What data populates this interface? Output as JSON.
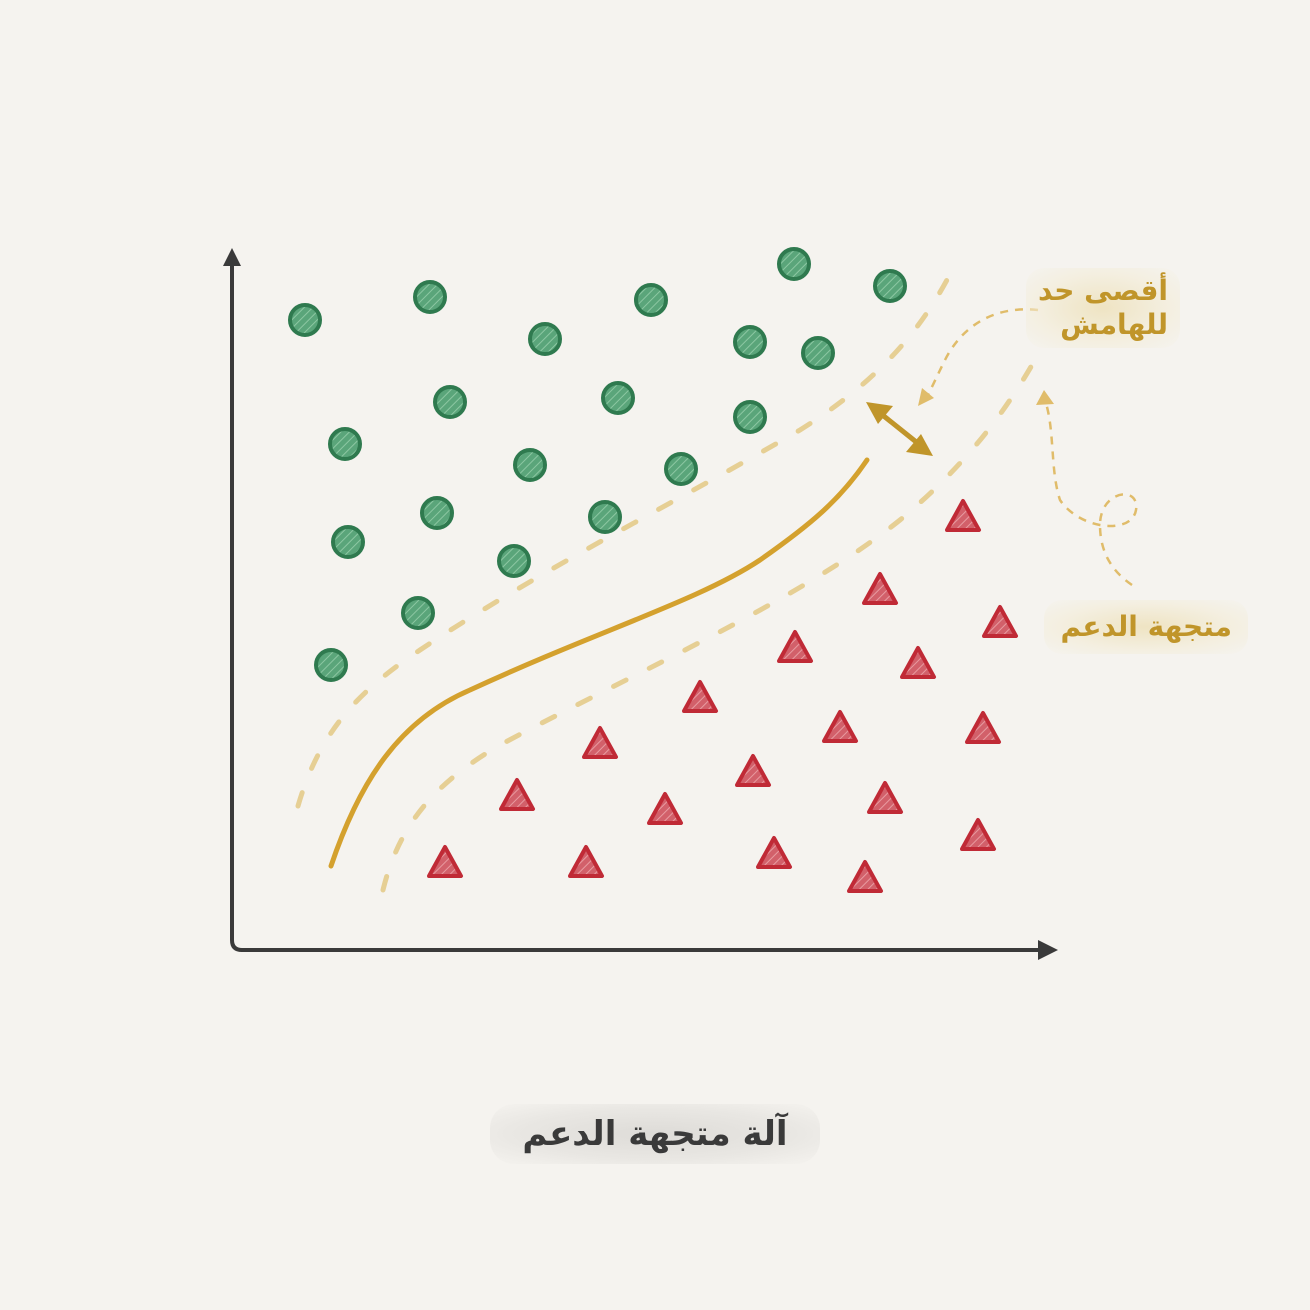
{
  "title": "آلة متجهة الدعم",
  "annotations": {
    "max_margin": "أقصى حد\nللهامش",
    "support_vectors": "متجهة الدعم"
  },
  "colors": {
    "background": "#f5f3ef",
    "axis": "#3a3a3a",
    "boundary": "#d4a12e",
    "margin": "#e6cf94",
    "accent": "#c0952a",
    "class_a_fill": "#5aa57a",
    "class_a_stroke": "#2f7a4f",
    "class_b_fill": "#d2606a",
    "class_b_stroke": "#c02a36"
  },
  "icons": [
    "circle-marker",
    "triangle-marker",
    "double-arrow-icon",
    "dashed-arrow-icon"
  ],
  "chart_data": {
    "type": "scatter",
    "series": [
      {
        "points": [
          [
            305,
            320
          ],
          [
            430,
            297
          ],
          [
            545,
            339
          ],
          [
            651,
            300
          ],
          [
            794,
            264
          ],
          [
            890,
            286
          ],
          [
            750,
            342
          ],
          [
            818,
            353
          ],
          [
            450,
            402
          ],
          [
            618,
            398
          ],
          [
            750,
            417
          ],
          [
            345,
            444
          ],
          [
            530,
            465
          ],
          [
            681,
            469
          ],
          [
            437,
            513
          ],
          [
            605,
            517
          ],
          [
            348,
            542
          ],
          [
            514,
            561
          ],
          [
            418,
            613
          ],
          [
            331,
            665
          ]
        ]
      },
      {
        "points": [
          [
            963,
            517
          ],
          [
            880,
            590
          ],
          [
            1000,
            623
          ],
          [
            795,
            648
          ],
          [
            918,
            664
          ],
          [
            700,
            698
          ],
          [
            840,
            728
          ],
          [
            983,
            729
          ],
          [
            600,
            744
          ],
          [
            753,
            772
          ],
          [
            517,
            796
          ],
          [
            665,
            810
          ],
          [
            885,
            799
          ],
          [
            978,
            836
          ],
          [
            445,
            863
          ],
          [
            586,
            863
          ],
          [
            774,
            854
          ],
          [
            865,
            878
          ]
        ]
      }
    ]
  }
}
